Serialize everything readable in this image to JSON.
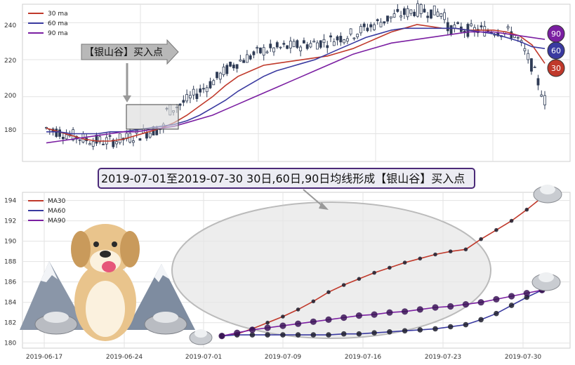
{
  "top_panel": {
    "y_ticks": [
      "240",
      "220",
      "200",
      "180"
    ],
    "legend": [
      {
        "label": "30 ma",
        "color": "#c0392b"
      },
      {
        "label": "60 ma",
        "color": "#3a3aa0"
      },
      {
        "label": "90 ma",
        "color": "#7b1fa2"
      }
    ],
    "annotation": "【银山谷】买入点",
    "badges": [
      {
        "label": "90",
        "color": "#7b1fa2"
      },
      {
        "label": "60",
        "color": "#3a3aa0"
      },
      {
        "label": "30",
        "color": "#c0392b"
      }
    ]
  },
  "banner_text": "2019-07-01至2019-07-30 30日,60日,90日均线形成【银山谷】买入点",
  "bottom_panel": {
    "y_ticks": [
      "194",
      "192",
      "190",
      "188",
      "186",
      "184",
      "182",
      "180"
    ],
    "x_ticks": [
      "2019-06-17",
      "2019-06-24",
      "2019-07-01",
      "2019-07-09",
      "2019-07-16",
      "2019-07-23",
      "2019-07-30"
    ],
    "legend": [
      {
        "label": "MA30",
        "color": "#c0392b"
      },
      {
        "label": "MA60",
        "color": "#3a3aa0"
      },
      {
        "label": "MA90",
        "color": "#7b1fa2"
      }
    ]
  },
  "chart_data": [
    {
      "type": "line",
      "description_panel": "price candlesticks with moving averages",
      "ylim": [
        165,
        250
      ],
      "series": [
        {
          "name": "30 ma",
          "color": "#c0392b",
          "values": [
            183,
            181,
            179,
            177,
            176,
            176,
            177,
            179,
            181,
            183,
            186,
            190,
            195,
            200,
            206,
            211,
            214,
            217,
            218,
            219,
            220,
            221,
            222,
            224,
            226,
            229,
            232,
            235,
            237,
            239,
            238,
            237,
            237,
            236,
            236,
            236,
            235,
            233,
            228,
            218
          ]
        },
        {
          "name": "60 ma",
          "color": "#3a3aa0",
          "values": [
            181,
            181,
            180,
            180,
            180,
            181,
            181,
            182,
            183,
            184,
            185,
            187,
            190,
            194,
            198,
            203,
            207,
            211,
            214,
            216,
            218,
            220,
            223,
            226,
            229,
            232,
            234,
            236,
            237,
            237,
            237,
            237,
            237,
            236,
            235,
            234,
            232,
            230,
            227,
            226
          ]
        },
        {
          "name": "90 ma",
          "color": "#7b1fa2",
          "values": [
            175,
            176,
            177,
            178,
            179,
            180,
            181,
            181,
            182,
            183,
            184,
            186,
            188,
            190,
            193,
            196,
            199,
            202,
            205,
            208,
            211,
            214,
            217,
            220,
            223,
            225,
            227,
            229,
            230,
            231,
            232,
            233,
            234,
            235,
            235,
            235,
            234,
            233,
            232,
            231
          ]
        }
      ]
    },
    {
      "type": "line",
      "description_panel": "moving averages zoom",
      "x": [
        "2019-07-01",
        "2019-07-02",
        "2019-07-03",
        "2019-07-04",
        "2019-07-05",
        "2019-07-08",
        "2019-07-09",
        "2019-07-10",
        "2019-07-11",
        "2019-07-12",
        "2019-07-15",
        "2019-07-16",
        "2019-07-17",
        "2019-07-18",
        "2019-07-19",
        "2019-07-22",
        "2019-07-23",
        "2019-07-24",
        "2019-07-25",
        "2019-07-26",
        "2019-07-29",
        "2019-07-30"
      ],
      "ylim": [
        179.5,
        194.8
      ],
      "series": [
        {
          "name": "MA30",
          "color": "#c0392b",
          "values": [
            180.7,
            180.9,
            181.4,
            182.0,
            182.6,
            183.3,
            184.1,
            185.0,
            185.7,
            186.3,
            186.9,
            187.4,
            187.9,
            188.3,
            188.7,
            189.0,
            189.2,
            190.2,
            191.1,
            192.0,
            193.1,
            194.3
          ]
        },
        {
          "name": "MA60",
          "color": "#3a3aa0",
          "values": [
            180.7,
            180.8,
            180.8,
            180.8,
            180.8,
            180.8,
            180.8,
            180.8,
            180.9,
            180.9,
            181.0,
            181.1,
            181.2,
            181.3,
            181.4,
            181.6,
            181.8,
            182.3,
            182.9,
            183.7,
            184.5,
            185.2
          ]
        },
        {
          "name": "MA90",
          "color": "#7b1fa2",
          "values": [
            180.7,
            181.0,
            181.3,
            181.5,
            181.7,
            181.9,
            182.1,
            182.3,
            182.5,
            182.7,
            182.8,
            183.0,
            183.1,
            183.3,
            183.5,
            183.6,
            183.8,
            184.0,
            184.3,
            184.6,
            184.9,
            185.2
          ]
        }
      ]
    }
  ]
}
